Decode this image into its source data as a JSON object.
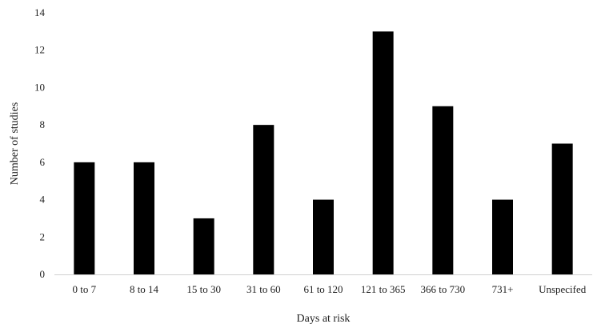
{
  "chart_data": {
    "type": "bar",
    "title": "",
    "xlabel": "Days at risk",
    "ylabel": "Number of studies",
    "categories": [
      "0 to 7",
      "8 to 14",
      "15 to 30",
      "31 to 60",
      "61 to 120",
      "121 to 365",
      "366 to 730",
      "731+",
      "Unspecifed"
    ],
    "values": [
      6,
      6,
      3,
      8,
      4,
      13,
      9,
      4,
      7
    ],
    "ylim": [
      0,
      14
    ],
    "yticks": [
      0,
      2,
      4,
      6,
      8,
      10,
      12,
      14
    ],
    "grid": false,
    "legend": "none",
    "bar_color": "#000000"
  }
}
